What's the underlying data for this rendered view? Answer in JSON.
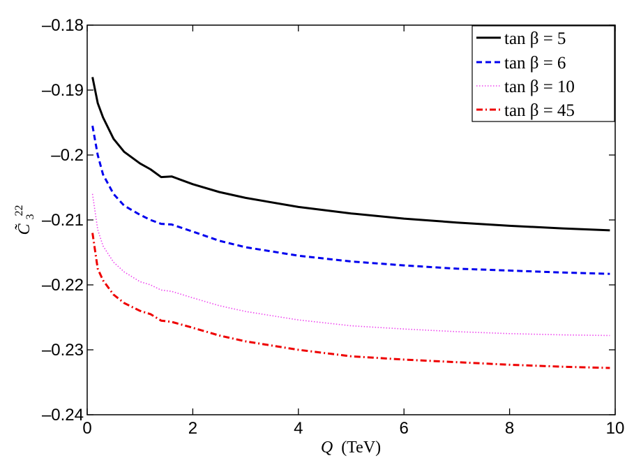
{
  "chart_data": {
    "type": "line",
    "title": "",
    "xlabel": "Q (TeV)",
    "xlabel_var": "Q",
    "xlabel_unit": "(TeV)",
    "ylabel": "C̃3^22",
    "ylabel_base": "C̃",
    "ylabel_sub": "3",
    "ylabel_sup": "22",
    "xlim": [
      0,
      10
    ],
    "ylim": [
      -0.24,
      -0.18
    ],
    "xticks": [
      0,
      2,
      4,
      6,
      8,
      10
    ],
    "xtick_labels": [
      "0",
      "2",
      "4",
      "6",
      "8",
      "10"
    ],
    "yticks": [
      -0.24,
      -0.23,
      -0.22,
      -0.21,
      -0.2,
      -0.19,
      -0.18
    ],
    "ytick_labels": [
      "–0.24",
      "–0.23",
      "–0.22",
      "–0.21",
      "–0.2",
      "–0.19",
      "–0.18"
    ],
    "grid": false,
    "legend_position": "top-right",
    "x": [
      0.1,
      0.2,
      0.3,
      0.5,
      0.7,
      1.0,
      1.2,
      1.4,
      1.6,
      2.0,
      2.5,
      3.0,
      4.0,
      5.0,
      6.0,
      7.0,
      8.0,
      9.0,
      9.9
    ],
    "series": [
      {
        "name": "tan β = 5",
        "legend_prefix": "tan β =",
        "legend_value": "5",
        "color": "#000000",
        "style": "solid",
        "values": [
          -0.188,
          -0.192,
          -0.1942,
          -0.1975,
          -0.1995,
          -0.2013,
          -0.2022,
          -0.2034,
          -0.2033,
          -0.2045,
          -0.2057,
          -0.2066,
          -0.208,
          -0.209,
          -0.2098,
          -0.2104,
          -0.2109,
          -0.2113,
          -0.2116
        ]
      },
      {
        "name": "tan β = 6",
        "legend_prefix": "tan β =",
        "legend_value": "6",
        "color": "#0000ee",
        "style": "dashed",
        "values": [
          -0.1955,
          -0.2,
          -0.203,
          -0.206,
          -0.2078,
          -0.2092,
          -0.21,
          -0.2106,
          -0.2107,
          -0.2118,
          -0.2132,
          -0.2142,
          -0.2155,
          -0.2164,
          -0.217,
          -0.2175,
          -0.2178,
          -0.2181,
          -0.2183
        ]
      },
      {
        "name": "tan β = 10",
        "legend_prefix": "tan β =",
        "legend_value": "10",
        "color": "#ee44ee",
        "style": "dotted",
        "values": [
          -0.206,
          -0.2115,
          -0.214,
          -0.2165,
          -0.218,
          -0.2195,
          -0.22,
          -0.2208,
          -0.221,
          -0.222,
          -0.2232,
          -0.2241,
          -0.2254,
          -0.2263,
          -0.2268,
          -0.2272,
          -0.2275,
          -0.2277,
          -0.2278
        ]
      },
      {
        "name": "tan β = 45",
        "legend_prefix": "tan β =",
        "legend_value": "45",
        "color": "#ee0000",
        "style": "dashdot",
        "values": [
          -0.212,
          -0.2175,
          -0.2193,
          -0.2215,
          -0.2228,
          -0.224,
          -0.2245,
          -0.2255,
          -0.2257,
          -0.2266,
          -0.2278,
          -0.2287,
          -0.23,
          -0.231,
          -0.2315,
          -0.2319,
          -0.2323,
          -0.2326,
          -0.2328
        ]
      }
    ]
  }
}
